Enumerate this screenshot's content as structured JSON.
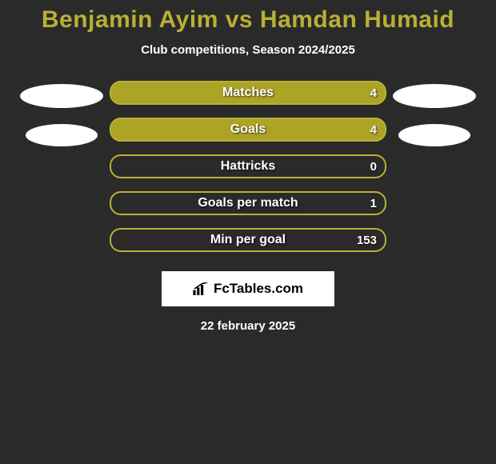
{
  "title": "Benjamin Ayim vs Hamdan Humaid",
  "subtitle": "Club competitions, Season 2024/2025",
  "colors": {
    "background": "#2a2a2a",
    "accent": "#b9b034",
    "bar_fill": "#aca327",
    "bar_outline": "#b9b034",
    "text_main": "#ffffff",
    "title": "#b9b034",
    "badge_bg": "#ffffff",
    "badge_text": "#000000"
  },
  "stats": [
    {
      "label": "Matches",
      "value": "4",
      "fill_pct": 100
    },
    {
      "label": "Goals",
      "value": "4",
      "fill_pct": 100
    },
    {
      "label": "Hattricks",
      "value": "0",
      "fill_pct": 0
    },
    {
      "label": "Goals per match",
      "value": "1",
      "fill_pct": 0
    },
    {
      "label": "Min per goal",
      "value": "153",
      "fill_pct": 0
    }
  ],
  "footer": {
    "brand": "FcTables.com",
    "date": "22 february 2025"
  }
}
